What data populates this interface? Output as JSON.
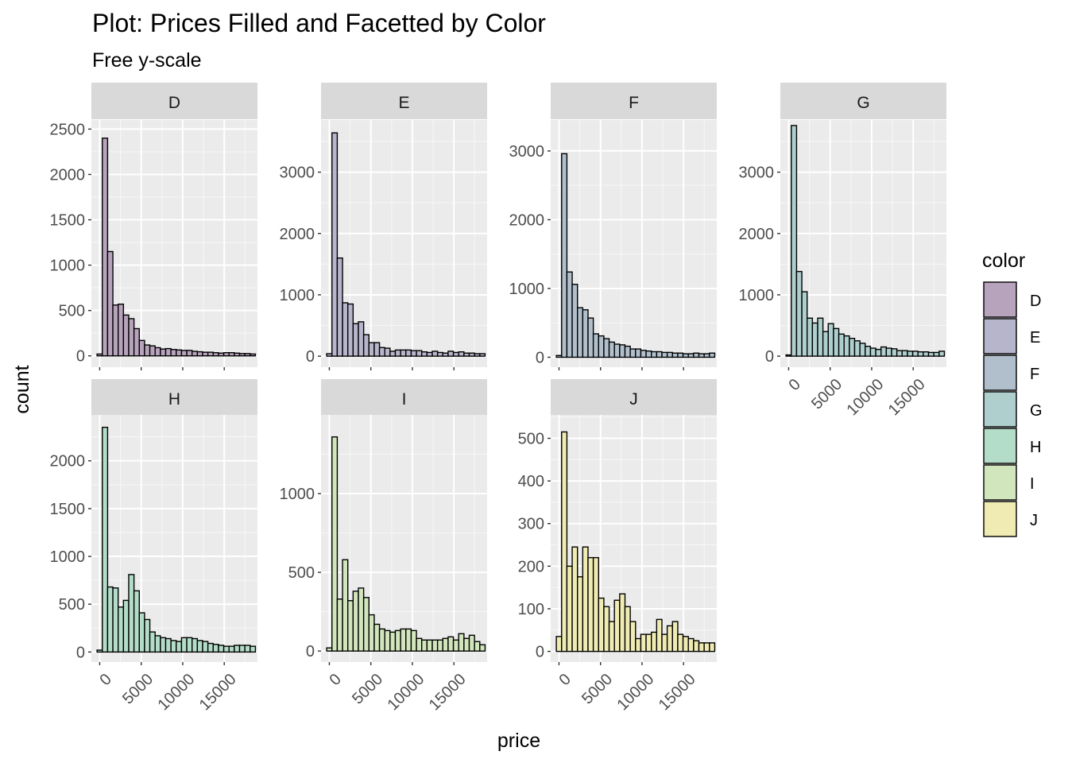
{
  "chart_data": {
    "type": "bar",
    "title": "Plot: Prices Filled and Facetted by Color",
    "subtitle": "Free y-scale",
    "xlabel": "price",
    "ylabel": "count",
    "x_ticks": [
      "0",
      "5000",
      "10000",
      "15000"
    ],
    "x_tick_values": [
      0,
      5000,
      10000,
      15000
    ],
    "xlim": [
      -1000,
      19000
    ],
    "bin_centers": [
      0,
      636,
      1271,
      1907,
      2543,
      3179,
      3814,
      4450,
      5086,
      5722,
      6357,
      6993,
      7629,
      8264,
      8900,
      9536,
      10172,
      10807,
      11443,
      12079,
      12715,
      13350,
      13986,
      14622,
      15258,
      15893,
      16529,
      17165,
      17800,
      18436
    ],
    "grid": true,
    "legend": {
      "title": "color",
      "position": "right",
      "entries": [
        {
          "label": "D",
          "color": "#b8a3bd"
        },
        {
          "label": "E",
          "color": "#b7b5cc"
        },
        {
          "label": "F",
          "color": "#b0bfcb"
        },
        {
          "label": "G",
          "color": "#aecfcd"
        },
        {
          "label": "H",
          "color": "#b3ddc8"
        },
        {
          "label": "I",
          "color": "#d2e6bd"
        },
        {
          "label": "J",
          "color": "#efebb3"
        }
      ]
    },
    "facets": [
      {
        "label": "D",
        "color": "#b8a3bd",
        "ylim": [
          -125,
          2600
        ],
        "y_ticks": [
          0,
          500,
          1000,
          1500,
          2000,
          2500
        ],
        "values": [
          20,
          2400,
          1150,
          560,
          570,
          450,
          410,
          300,
          170,
          120,
          110,
          90,
          75,
          80,
          70,
          65,
          60,
          60,
          50,
          45,
          40,
          40,
          35,
          30,
          35,
          35,
          30,
          25,
          25,
          20
        ]
      },
      {
        "label": "E",
        "color": "#b7b5cc",
        "ylim": [
          -180,
          3850
        ],
        "y_ticks": [
          0,
          1000,
          2000,
          3000
        ],
        "values": [
          40,
          3640,
          1600,
          870,
          850,
          530,
          560,
          350,
          220,
          220,
          140,
          130,
          80,
          100,
          100,
          100,
          90,
          90,
          70,
          60,
          80,
          60,
          50,
          80,
          60,
          70,
          50,
          50,
          40,
          40
        ]
      },
      {
        "label": "F",
        "color": "#b0bfcb",
        "ylim": [
          -145,
          3450
        ],
        "y_ticks": [
          0,
          1000,
          2000,
          3000
        ],
        "values": [
          25,
          2960,
          1240,
          1060,
          720,
          690,
          570,
          340,
          310,
          270,
          220,
          190,
          180,
          160,
          120,
          120,
          100,
          90,
          80,
          80,
          70,
          70,
          60,
          60,
          50,
          50,
          60,
          50,
          50,
          60
        ]
      },
      {
        "label": "G",
        "color": "#aecfcd",
        "ylim": [
          -180,
          3850
        ],
        "y_ticks": [
          0,
          1000,
          2000,
          3000
        ],
        "values": [
          20,
          3760,
          1380,
          1050,
          620,
          540,
          620,
          400,
          530,
          450,
          360,
          330,
          290,
          250,
          210,
          160,
          130,
          110,
          150,
          130,
          120,
          90,
          90,
          80,
          80,
          70,
          70,
          60,
          60,
          80
        ]
      },
      {
        "label": "H",
        "color": "#b3ddc8",
        "ylim": [
          -105,
          2480
        ],
        "y_ticks": [
          0,
          500,
          1000,
          1500,
          2000
        ],
        "values": [
          20,
          2350,
          680,
          670,
          470,
          540,
          810,
          640,
          410,
          340,
          210,
          170,
          150,
          140,
          120,
          110,
          150,
          150,
          140,
          120,
          110,
          90,
          80,
          70,
          60,
          60,
          70,
          70,
          70,
          60
        ]
      },
      {
        "label": "I",
        "color": "#d2e6bd",
        "ylim": [
          -70,
          1500
        ],
        "y_ticks": [
          0,
          500,
          1000
        ],
        "values": [
          20,
          1360,
          330,
          580,
          320,
          380,
          400,
          340,
          230,
          170,
          140,
          130,
          120,
          130,
          140,
          140,
          130,
          80,
          70,
          70,
          70,
          70,
          80,
          90,
          70,
          110,
          80,
          100,
          60,
          40
        ]
      },
      {
        "label": "J",
        "color": "#efebb3",
        "ylim": [
          -25,
          555
        ],
        "y_ticks": [
          0,
          100,
          200,
          300,
          400,
          500
        ],
        "values": [
          35,
          515,
          200,
          245,
          175,
          245,
          220,
          220,
          125,
          105,
          70,
          120,
          135,
          105,
          70,
          30,
          40,
          40,
          45,
          75,
          40,
          60,
          70,
          40,
          35,
          30,
          25,
          20,
          20,
          20
        ]
      }
    ]
  }
}
